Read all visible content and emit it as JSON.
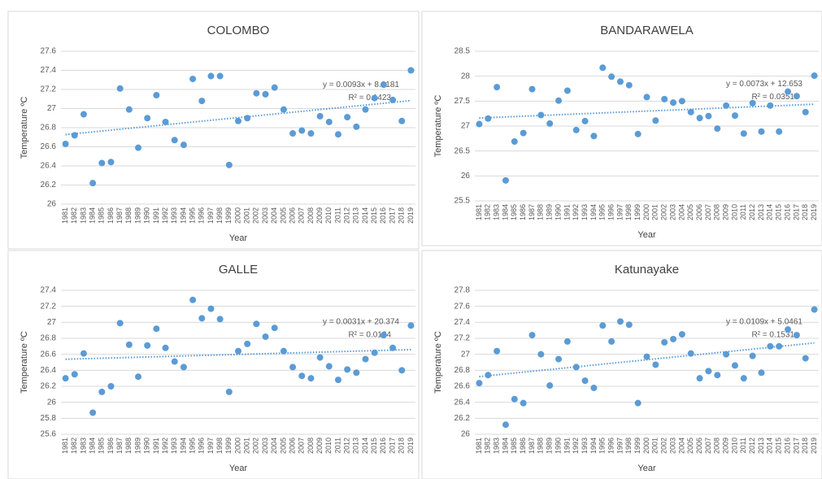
{
  "chart_data": [
    {
      "type": "scatter",
      "title": "COLOMBO",
      "xlabel": "Year",
      "ylabel": "Temperature ºC",
      "color": "#5b9bd5",
      "grid": true,
      "trendline": true,
      "annotations": [
        "y = 0.0093x + 8.2181",
        "R² = 0.1423"
      ],
      "categories": [
        "1981",
        "1982",
        "1983",
        "1984",
        "1985",
        "1986",
        "1987",
        "1988",
        "1989",
        "1990",
        "1991",
        "1992",
        "1993",
        "1994",
        "1995",
        "1996",
        "1997",
        "1998",
        "1999",
        "2000",
        "2001",
        "2002",
        "2003",
        "2004",
        "2005",
        "2006",
        "2007",
        "2008",
        "2009",
        "2010",
        "2011",
        "2012",
        "2013",
        "2014",
        "2015",
        "2016",
        "2017",
        "2018",
        "2019"
      ],
      "values": [
        26.63,
        26.72,
        26.94,
        26.22,
        26.43,
        26.44,
        27.21,
        26.99,
        26.59,
        26.9,
        27.14,
        26.86,
        26.67,
        26.62,
        27.31,
        27.08,
        27.34,
        27.34,
        26.41,
        26.87,
        26.9,
        27.16,
        27.15,
        27.22,
        26.99,
        26.74,
        26.77,
        26.74,
        26.92,
        26.86,
        26.73,
        26.91,
        26.81,
        26.99,
        27.11,
        27.25,
        27.09,
        26.87,
        27.4
      ],
      "ylim": [
        26,
        27.6
      ],
      "yticks": [
        26,
        26.2,
        26.4,
        26.6,
        26.8,
        27,
        27.2,
        27.4,
        27.6
      ]
    },
    {
      "type": "scatter",
      "title": "BANDARAWELA",
      "xlabel": "Year",
      "ylabel": "Temperature ºC",
      "color": "#5b9bd5",
      "grid": true,
      "trendline": true,
      "annotations": [
        "y = 0.0073x + 12.653",
        "R² = 0.0351"
      ],
      "categories": [
        "1981",
        "1982",
        "1983",
        "1984",
        "1985",
        "1986",
        "1987",
        "1988",
        "1989",
        "1990",
        "1991",
        "1992",
        "1993",
        "1994",
        "1995",
        "1996",
        "1997",
        "1998",
        "1999",
        "2000",
        "2001",
        "2002",
        "2003",
        "2004",
        "2005",
        "2006",
        "2007",
        "2008",
        "2009",
        "2010",
        "2011",
        "2012",
        "2013",
        "2014",
        "2015",
        "2016",
        "2017",
        "2018",
        "2019"
      ],
      "values": [
        27.04,
        27.15,
        27.78,
        25.91,
        26.69,
        26.86,
        27.74,
        27.22,
        27.05,
        27.51,
        27.71,
        26.92,
        27.1,
        26.8,
        28.17,
        27.99,
        27.89,
        27.82,
        26.84,
        27.58,
        27.11,
        27.54,
        27.47,
        27.5,
        27.28,
        27.16,
        27.2,
        26.95,
        27.41,
        27.21,
        26.85,
        27.46,
        26.89,
        27.41,
        26.89,
        27.69,
        27.6,
        27.28,
        28.01
      ],
      "ylim": [
        25.5,
        28.5
      ],
      "yticks": [
        25.5,
        26,
        26.5,
        27,
        27.5,
        28,
        28.5
      ]
    },
    {
      "type": "scatter",
      "title": "GALLE",
      "xlabel": "Year",
      "ylabel": "Temperature ºC",
      "color": "#5b9bd5",
      "grid": true,
      "trendline": true,
      "annotations": [
        "y = 0.0031x + 20.374",
        "R² = 0.0124"
      ],
      "categories": [
        "1981",
        "1982",
        "1983",
        "1984",
        "1985",
        "1986",
        "1987",
        "1988",
        "1989",
        "1990",
        "1991",
        "1992",
        "1993",
        "1994",
        "1995",
        "1996",
        "1997",
        "1998",
        "1999",
        "2000",
        "2001",
        "2002",
        "2003",
        "2004",
        "2005",
        "2006",
        "2007",
        "2008",
        "2009",
        "2010",
        "2011",
        "2012",
        "2013",
        "2014",
        "2015",
        "2016",
        "2017",
        "2018",
        "2019"
      ],
      "values": [
        26.3,
        26.35,
        26.61,
        25.87,
        26.13,
        26.2,
        26.99,
        26.72,
        26.32,
        26.71,
        26.92,
        26.68,
        26.51,
        26.44,
        27.28,
        27.05,
        27.17,
        27.04,
        26.13,
        26.64,
        26.73,
        26.98,
        26.82,
        26.93,
        26.64,
        26.44,
        26.33,
        26.3,
        26.56,
        26.45,
        26.28,
        26.41,
        26.37,
        26.54,
        26.62,
        26.84,
        26.68,
        26.4,
        26.96
      ],
      "ylim": [
        25.6,
        27.4
      ],
      "yticks": [
        25.6,
        25.8,
        26,
        26.2,
        26.4,
        26.6,
        26.8,
        27,
        27.2,
        27.4
      ]
    },
    {
      "type": "scatter",
      "title": "Katunayake",
      "xlabel": "Year",
      "ylabel": "Temperature ºC",
      "color": "#5b9bd5",
      "grid": true,
      "trendline": true,
      "annotations": [
        "y = 0.0109x + 5.0461",
        "R² = 0.1531"
      ],
      "categories": [
        "1981",
        "1982",
        "1983",
        "1984",
        "1985",
        "1986",
        "1987",
        "1988",
        "1989",
        "1990",
        "1991",
        "1992",
        "1993",
        "1994",
        "1995",
        "1996",
        "1997",
        "1998",
        "1999",
        "2000",
        "2001",
        "2002",
        "2003",
        "2004",
        "2005",
        "2006",
        "2007",
        "2008",
        "2009",
        "2010",
        "2011",
        "2012",
        "2013",
        "2014",
        "2015",
        "2016",
        "2017",
        "2018",
        "2019"
      ],
      "values": [
        26.64,
        26.74,
        27.04,
        26.12,
        26.44,
        26.39,
        27.24,
        27.0,
        26.61,
        26.94,
        27.16,
        26.84,
        26.67,
        26.58,
        27.36,
        27.16,
        27.41,
        27.37,
        26.39,
        26.97,
        26.87,
        27.15,
        27.19,
        27.25,
        27.01,
        26.7,
        26.79,
        26.74,
        27.0,
        26.86,
        26.7,
        26.98,
        26.77,
        27.1,
        27.1,
        27.31,
        27.24,
        26.95,
        27.56
      ],
      "ylim": [
        26,
        27.8
      ],
      "yticks": [
        26,
        26.2,
        26.4,
        26.6,
        26.8,
        27,
        27.2,
        27.4,
        27.6,
        27.8
      ]
    }
  ]
}
